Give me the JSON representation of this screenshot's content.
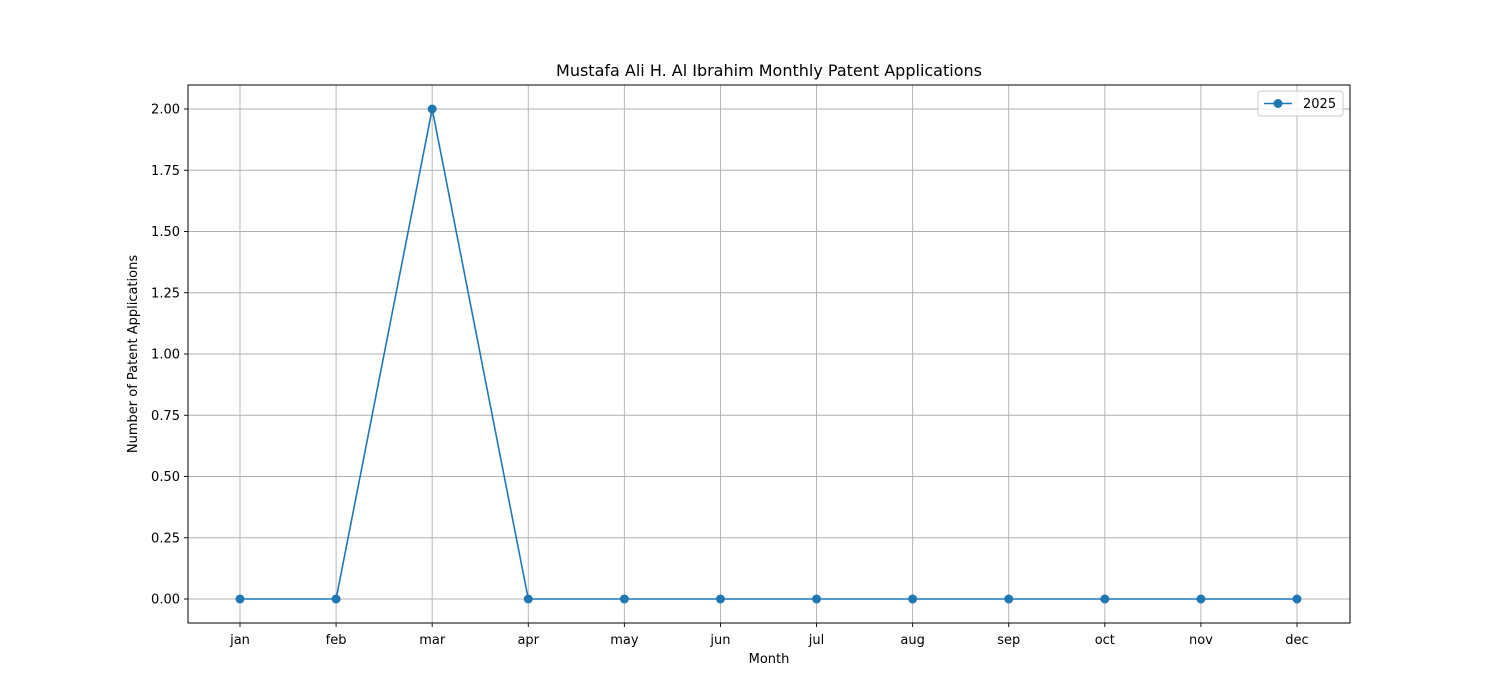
{
  "chart_data": {
    "type": "line",
    "title": "Mustafa Ali H. Al Ibrahim Monthly Patent Applications",
    "xlabel": "Month",
    "ylabel": "Number of Patent Applications",
    "categories": [
      "jan",
      "feb",
      "mar",
      "apr",
      "may",
      "jun",
      "jul",
      "aug",
      "sep",
      "oct",
      "nov",
      "dec"
    ],
    "series": [
      {
        "name": "2025",
        "values": [
          0,
          0,
          2,
          0,
          0,
          0,
          0,
          0,
          0,
          0,
          0,
          0
        ],
        "color": "#1f77b4",
        "marker": "circle"
      }
    ],
    "ylim": [
      -0.1,
      2.1
    ],
    "yticks": [
      0.0,
      0.25,
      0.5,
      0.75,
      1.0,
      1.25,
      1.5,
      1.75,
      2.0
    ],
    "ytick_labels": [
      "0.00",
      "0.25",
      "0.50",
      "0.75",
      "1.00",
      "1.25",
      "1.50",
      "1.75",
      "2.00"
    ],
    "grid": true,
    "legend_position": "top-right"
  }
}
